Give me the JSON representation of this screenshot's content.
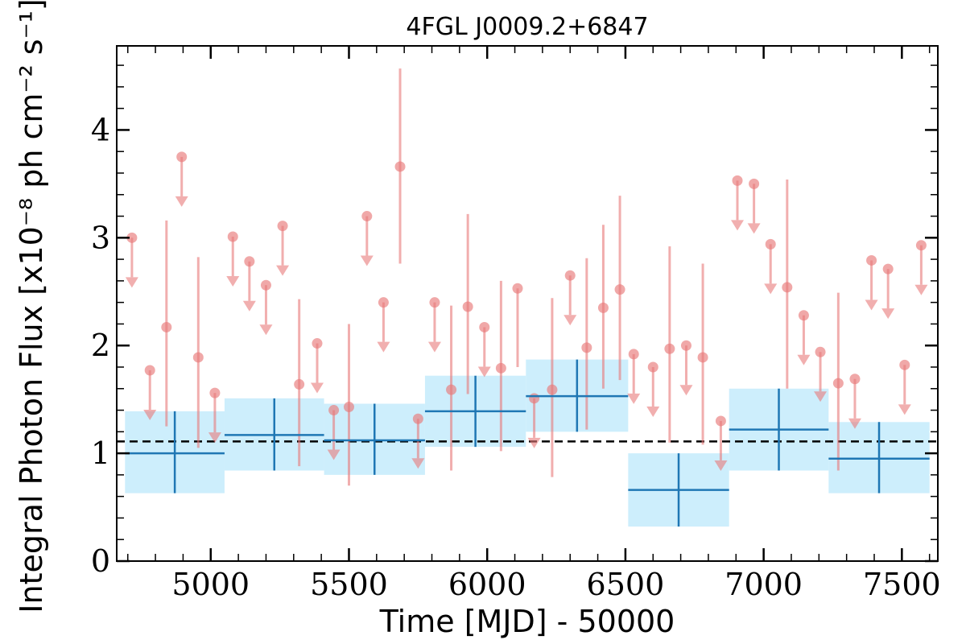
{
  "chart_data": {
    "type": "scatter",
    "title": "4FGL J0009.2+6847",
    "xlabel": "Time [MJD] - 50000",
    "ylabel": "Integral Photon Flux [x10⁻⁸ ph cm⁻² s⁻¹]",
    "xlim": [
      4660,
      7630
    ],
    "ylim": [
      0,
      4.78
    ],
    "x_ticks": [
      5000,
      5500,
      6000,
      6500,
      7000,
      7500
    ],
    "y_ticks": [
      0,
      1,
      2,
      3,
      4
    ],
    "mean_flux": 1.11,
    "colors": {
      "points": "#e87979",
      "bins_fill": "#cdeefc",
      "bins_line": "#1f77b4",
      "mean_line": "#000000"
    },
    "series": [
      {
        "kind": "upper_limits",
        "points": [
          {
            "x": 4715,
            "y": 3.0
          },
          {
            "x": 4780,
            "y": 1.77
          },
          {
            "x": 4895,
            "y": 3.75
          },
          {
            "x": 5015,
            "y": 1.56
          },
          {
            "x": 5080,
            "y": 3.01
          },
          {
            "x": 5140,
            "y": 2.78
          },
          {
            "x": 5200,
            "y": 2.56
          },
          {
            "x": 5260,
            "y": 3.11
          },
          {
            "x": 5385,
            "y": 2.02
          },
          {
            "x": 5445,
            "y": 1.4
          },
          {
            "x": 5565,
            "y": 3.2
          },
          {
            "x": 5625,
            "y": 2.4
          },
          {
            "x": 5750,
            "y": 1.32
          },
          {
            "x": 5810,
            "y": 2.4
          },
          {
            "x": 5990,
            "y": 2.17
          },
          {
            "x": 6170,
            "y": 1.51
          },
          {
            "x": 6300,
            "y": 2.65
          },
          {
            "x": 6530,
            "y": 1.92
          },
          {
            "x": 6600,
            "y": 1.8
          },
          {
            "x": 6720,
            "y": 2.0
          },
          {
            "x": 6845,
            "y": 1.3
          },
          {
            "x": 6905,
            "y": 3.53
          },
          {
            "x": 6965,
            "y": 3.5
          },
          {
            "x": 7025,
            "y": 2.94
          },
          {
            "x": 7145,
            "y": 2.28
          },
          {
            "x": 7205,
            "y": 1.94
          },
          {
            "x": 7330,
            "y": 1.69
          },
          {
            "x": 7390,
            "y": 2.79
          },
          {
            "x": 7450,
            "y": 2.71
          },
          {
            "x": 7510,
            "y": 1.82
          },
          {
            "x": 7570,
            "y": 2.93
          }
        ]
      },
      {
        "kind": "detections",
        "points": [
          {
            "x": 4840,
            "y": 2.17,
            "lo": 1.25,
            "hi": 3.16
          },
          {
            "x": 4955,
            "y": 1.89,
            "lo": 1.05,
            "hi": 2.82
          },
          {
            "x": 5320,
            "y": 1.64,
            "lo": 0.88,
            "hi": 2.43
          },
          {
            "x": 5500,
            "y": 1.43,
            "lo": 0.7,
            "hi": 2.2
          },
          {
            "x": 5685,
            "y": 3.66,
            "lo": 2.76,
            "hi": 4.57
          },
          {
            "x": 5870,
            "y": 1.59,
            "lo": 0.84,
            "hi": 2.37
          },
          {
            "x": 5930,
            "y": 2.36,
            "lo": 1.55,
            "hi": 3.22
          },
          {
            "x": 6050,
            "y": 1.79,
            "lo": 1.02,
            "hi": 2.6
          },
          {
            "x": 6110,
            "y": 2.53,
            "lo": 1.8,
            "hi": 2.53
          },
          {
            "x": 6235,
            "y": 1.59,
            "lo": 0.78,
            "hi": 2.44
          },
          {
            "x": 6360,
            "y": 1.98,
            "lo": 1.22,
            "hi": 2.81
          },
          {
            "x": 6420,
            "y": 2.35,
            "lo": 1.6,
            "hi": 3.12
          },
          {
            "x": 6480,
            "y": 2.52,
            "lo": 1.68,
            "hi": 3.39
          },
          {
            "x": 6660,
            "y": 1.97,
            "lo": 1.1,
            "hi": 2.92
          },
          {
            "x": 6780,
            "y": 1.89,
            "lo": 1.08,
            "hi": 2.76
          },
          {
            "x": 7085,
            "y": 2.54,
            "lo": 1.6,
            "hi": 3.54
          },
          {
            "x": 7270,
            "y": 1.65,
            "lo": 0.84,
            "hi": 2.49
          }
        ]
      },
      {
        "kind": "bins",
        "bins": [
          {
            "x0": 4690,
            "x1": 5050,
            "y": 1.0,
            "lo": 0.63,
            "hi": 1.39
          },
          {
            "x0": 5050,
            "x1": 5410,
            "y": 1.17,
            "lo": 0.84,
            "hi": 1.51
          },
          {
            "x0": 5410,
            "x1": 5775,
            "y": 1.12,
            "lo": 0.8,
            "hi": 1.46
          },
          {
            "x0": 5775,
            "x1": 6140,
            "y": 1.39,
            "lo": 1.06,
            "hi": 1.72
          },
          {
            "x0": 6140,
            "x1": 6510,
            "y": 1.53,
            "lo": 1.2,
            "hi": 1.87
          },
          {
            "x0": 6510,
            "x1": 6875,
            "y": 0.66,
            "lo": 0.32,
            "hi": 1.0
          },
          {
            "x0": 6875,
            "x1": 7235,
            "y": 1.22,
            "lo": 0.84,
            "hi": 1.6
          },
          {
            "x0": 7235,
            "x1": 7600,
            "y": 0.95,
            "lo": 0.63,
            "hi": 1.29
          }
        ]
      }
    ]
  }
}
